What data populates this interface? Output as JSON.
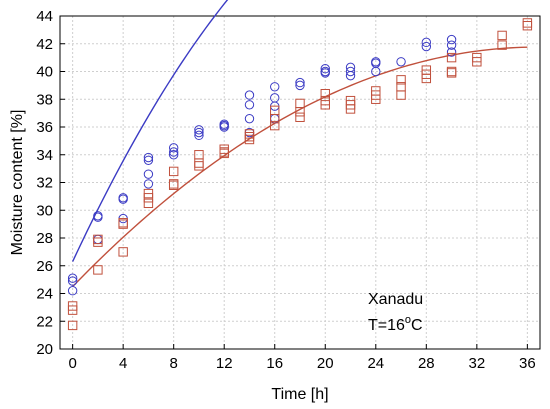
{
  "chart_data": {
    "type": "scatter",
    "xlabel": "Time [h]",
    "ylabel": "Moisture content [%]",
    "xlim": [
      -1,
      37
    ],
    "ylim": [
      20,
      44
    ],
    "xticks": [
      0,
      4,
      8,
      12,
      16,
      20,
      24,
      28,
      32,
      36
    ],
    "yticks": [
      20,
      22,
      24,
      26,
      28,
      30,
      32,
      34,
      36,
      38,
      40,
      42,
      44
    ],
    "grid": true,
    "annotation": {
      "line1": "Xanadu",
      "line2_prefix": "T=16",
      "line2_sup": "o",
      "line2_suffix": "C"
    },
    "series": [
      {
        "marker": "circle",
        "color": "#3b3bc4",
        "points": [
          [
            0,
            25.1
          ],
          [
            0,
            24.9
          ],
          [
            0,
            24.2
          ],
          [
            2,
            29.6
          ],
          [
            2,
            29.5
          ],
          [
            2,
            27.9
          ],
          [
            4,
            30.9
          ],
          [
            4,
            30.8
          ],
          [
            4,
            29.4
          ],
          [
            6,
            33.8
          ],
          [
            6,
            33.6
          ],
          [
            6,
            32.6
          ],
          [
            6,
            31.9
          ],
          [
            8,
            34.5
          ],
          [
            8,
            34.2
          ],
          [
            8,
            34.0
          ],
          [
            10,
            35.8
          ],
          [
            10,
            35.6
          ],
          [
            10,
            35.4
          ],
          [
            12,
            36.2
          ],
          [
            12,
            36.0
          ],
          [
            12,
            36.1
          ],
          [
            14,
            38.3
          ],
          [
            14,
            37.6
          ],
          [
            14,
            36.6
          ],
          [
            14,
            35.6
          ],
          [
            16,
            38.9
          ],
          [
            16,
            38.1
          ],
          [
            16,
            37.5
          ],
          [
            16,
            36.6
          ],
          [
            18,
            39.2
          ],
          [
            18,
            39.0
          ],
          [
            20,
            40.2
          ],
          [
            20,
            40.0
          ],
          [
            20,
            39.9
          ],
          [
            22,
            40.3
          ],
          [
            22,
            40.0
          ],
          [
            22,
            39.7
          ],
          [
            24,
            40.7
          ],
          [
            24,
            40.6
          ],
          [
            24,
            40.0
          ],
          [
            26,
            40.7
          ],
          [
            28,
            42.1
          ],
          [
            28,
            41.8
          ],
          [
            30,
            42.3
          ],
          [
            30,
            41.9
          ],
          [
            30,
            41.4
          ]
        ],
        "fit": {
          "a": 26.3,
          "b": 1.95,
          "c": -0.0335
        }
      },
      {
        "marker": "square",
        "color": "#c0503c",
        "points": [
          [
            0,
            23.1
          ],
          [
            0,
            22.8
          ],
          [
            0,
            21.7
          ],
          [
            2,
            27.9
          ],
          [
            2,
            27.7
          ],
          [
            2,
            25.7
          ],
          [
            4,
            29.1
          ],
          [
            4,
            29.0
          ],
          [
            4,
            27.0
          ],
          [
            6,
            31.2
          ],
          [
            6,
            30.5
          ],
          [
            6,
            30.9
          ],
          [
            8,
            32.8
          ],
          [
            8,
            31.9
          ],
          [
            8,
            31.8
          ],
          [
            10,
            34.0
          ],
          [
            10,
            33.4
          ],
          [
            10,
            33.2
          ],
          [
            12,
            34.4
          ],
          [
            12,
            34.1
          ],
          [
            12,
            34.2
          ],
          [
            14,
            35.5
          ],
          [
            14,
            35.3
          ],
          [
            14,
            35.1
          ],
          [
            16,
            37.2
          ],
          [
            16,
            36.6
          ],
          [
            16,
            36.1
          ],
          [
            18,
            37.7
          ],
          [
            18,
            37.1
          ],
          [
            18,
            36.7
          ],
          [
            20,
            38.4
          ],
          [
            20,
            37.9
          ],
          [
            20,
            37.6
          ],
          [
            22,
            37.9
          ],
          [
            22,
            37.6
          ],
          [
            22,
            37.3
          ],
          [
            24,
            38.6
          ],
          [
            24,
            38.3
          ],
          [
            24,
            38.0
          ],
          [
            26,
            39.4
          ],
          [
            26,
            38.9
          ],
          [
            26,
            38.3
          ],
          [
            28,
            40.1
          ],
          [
            28,
            39.8
          ],
          [
            28,
            39.5
          ],
          [
            30,
            41.0
          ],
          [
            30,
            40.0
          ],
          [
            30,
            39.9
          ],
          [
            32,
            41.0
          ],
          [
            32,
            40.7
          ],
          [
            34,
            42.6
          ],
          [
            34,
            41.9
          ],
          [
            36,
            43.5
          ],
          [
            36,
            43.3
          ]
        ],
        "fit": {
          "a": 24.5,
          "b": 0.94,
          "c": -0.0128
        }
      }
    ]
  }
}
